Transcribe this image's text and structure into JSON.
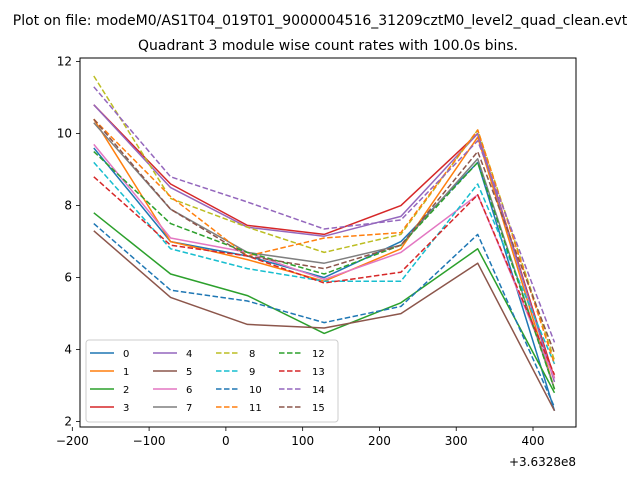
{
  "figure": {
    "suptitle": "Plot on file: modeM0/AS1T04_019T01_9000004516_31209cztM0_level2_quad_clean.evt",
    "title": "Quadrant 3 module wise count rates with 100.0s bins.",
    "x_offset_label": "+3.6328e8"
  },
  "chart_data": {
    "type": "line",
    "title": "Quadrant 3 module wise count rates with 100.0s bins.",
    "xlabel": "",
    "ylabel": "",
    "x_offset": 363280000,
    "x_offset_label": "+3.6328e8",
    "x": [
      -172,
      -72,
      28,
      128,
      228,
      328,
      428
    ],
    "xlim": [
      -190,
      456
    ],
    "ylim": [
      1.85,
      12.1
    ],
    "xticks": [
      -200,
      -100,
      0,
      100,
      200,
      300,
      400
    ],
    "xtick_labels": [
      "−200",
      "−100",
      "0",
      "100",
      "200",
      "300",
      "400"
    ],
    "yticks": [
      2,
      4,
      6,
      8,
      10,
      12
    ],
    "ytick_labels": [
      "2",
      "4",
      "6",
      "8",
      "10",
      "12"
    ],
    "grid": false,
    "legend": {
      "position": "lower-left",
      "columns": 4
    },
    "series": [
      {
        "name": "0",
        "color": "#1f77b4",
        "dash": "solid",
        "values": [
          9.6,
          7.0,
          6.6,
          6.0,
          7.0,
          9.2,
          2.3
        ]
      },
      {
        "name": "1",
        "color": "#ff7f0e",
        "dash": "solid",
        "values": [
          10.4,
          7.0,
          6.5,
          5.9,
          6.8,
          9.9,
          2.9
        ]
      },
      {
        "name": "2",
        "color": "#2ca02c",
        "dash": "solid",
        "values": [
          7.8,
          6.1,
          5.5,
          4.45,
          5.3,
          6.8,
          2.8
        ]
      },
      {
        "name": "3",
        "color": "#d62728",
        "dash": "solid",
        "values": [
          10.8,
          8.6,
          7.45,
          7.2,
          8.0,
          10.0,
          3.2
        ]
      },
      {
        "name": "4",
        "color": "#9467bd",
        "dash": "solid",
        "values": [
          10.8,
          8.5,
          7.4,
          7.15,
          7.7,
          10.0,
          3.1
        ]
      },
      {
        "name": "5",
        "color": "#8c564b",
        "dash": "solid",
        "values": [
          7.3,
          5.45,
          4.7,
          4.6,
          5.0,
          6.4,
          2.3
        ]
      },
      {
        "name": "6",
        "color": "#e377c2",
        "dash": "solid",
        "values": [
          9.7,
          7.1,
          6.7,
          5.95,
          6.7,
          8.3,
          3.2
        ]
      },
      {
        "name": "7",
        "color": "#7f7f7f",
        "dash": "solid",
        "values": [
          10.3,
          7.9,
          6.7,
          6.4,
          6.9,
          9.3,
          2.9
        ]
      },
      {
        "name": "8",
        "color": "#bcbd22",
        "dash": "dashed",
        "values": [
          11.6,
          8.2,
          7.4,
          6.7,
          7.2,
          10.1,
          3.7
        ]
      },
      {
        "name": "9",
        "color": "#17becf",
        "dash": "dashed",
        "values": [
          9.2,
          6.8,
          6.25,
          5.9,
          5.9,
          8.6,
          3.6
        ]
      },
      {
        "name": "10",
        "color": "#1f77b4",
        "dash": "dashed",
        "values": [
          7.5,
          5.65,
          5.35,
          4.75,
          5.2,
          7.2,
          2.4
        ]
      },
      {
        "name": "11",
        "color": "#ff7f0e",
        "dash": "dashed",
        "values": [
          10.4,
          8.25,
          6.6,
          7.1,
          7.25,
          10.1,
          3.6
        ]
      },
      {
        "name": "12",
        "color": "#2ca02c",
        "dash": "dashed",
        "values": [
          9.5,
          7.5,
          6.7,
          6.1,
          6.9,
          9.2,
          2.9
        ]
      },
      {
        "name": "13",
        "color": "#d62728",
        "dash": "dashed",
        "values": [
          8.8,
          6.9,
          6.6,
          5.85,
          6.15,
          8.3,
          3.3
        ]
      },
      {
        "name": "14",
        "color": "#9467bd",
        "dash": "dashed",
        "values": [
          11.3,
          8.8,
          8.1,
          7.35,
          7.6,
          9.8,
          4.2
        ]
      },
      {
        "name": "15",
        "color": "#8c564b",
        "dash": "dashed",
        "values": [
          10.4,
          7.9,
          6.6,
          6.25,
          6.9,
          9.5,
          3.9
        ]
      }
    ]
  }
}
